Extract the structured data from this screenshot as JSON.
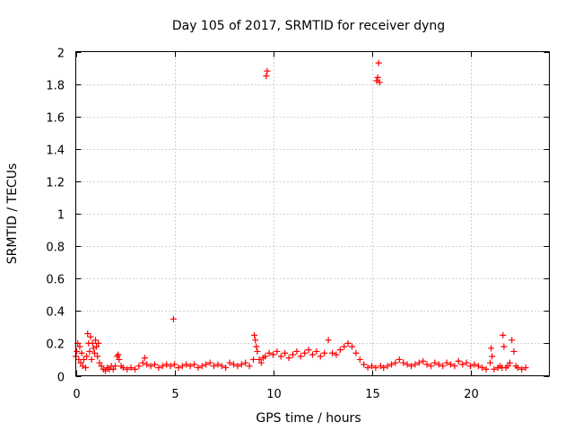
{
  "chart_data": {
    "type": "scatter",
    "title": "Day 105 of 2017, SRMTID for receiver dyng",
    "xlabel": "GPS time / hours",
    "ylabel": "SRMTID / TECUs",
    "xlim": [
      0,
      24
    ],
    "ylim": [
      0,
      2
    ],
    "xticks": [
      0,
      5,
      10,
      15,
      20
    ],
    "yticks": [
      0,
      0.2,
      0.4,
      0.6,
      0.8,
      1,
      1.2,
      1.4,
      1.6,
      1.8,
      2
    ],
    "xtick_labels": [
      "0",
      "5",
      "10",
      "15",
      "20"
    ],
    "ytick_labels": [
      "0",
      "0.2",
      "0.4",
      "0.6",
      "0.8",
      "1",
      "1.2",
      "1.4",
      "1.6",
      "1.8",
      "2"
    ],
    "grid": true,
    "marker": "+",
    "color": "#ff0000",
    "series": [
      {
        "name": "SRMTID",
        "points": [
          [
            0.0,
            0.12
          ],
          [
            0.05,
            0.15
          ],
          [
            0.1,
            0.2
          ],
          [
            0.15,
            0.1
          ],
          [
            0.2,
            0.18
          ],
          [
            0.25,
            0.08
          ],
          [
            0.3,
            0.14
          ],
          [
            0.35,
            0.06
          ],
          [
            0.4,
            0.1
          ],
          [
            0.5,
            0.05
          ],
          [
            0.55,
            0.12
          ],
          [
            0.6,
            0.26
          ],
          [
            0.65,
            0.2
          ],
          [
            0.7,
            0.15
          ],
          [
            0.75,
            0.24
          ],
          [
            0.8,
            0.1
          ],
          [
            0.85,
            0.2
          ],
          [
            0.9,
            0.17
          ],
          [
            0.95,
            0.14
          ],
          [
            1.0,
            0.22
          ],
          [
            1.05,
            0.18
          ],
          [
            1.1,
            0.12
          ],
          [
            1.15,
            0.2
          ],
          [
            1.2,
            0.08
          ],
          [
            1.3,
            0.06
          ],
          [
            1.4,
            0.04
          ],
          [
            1.5,
            0.03
          ],
          [
            1.6,
            0.05
          ],
          [
            1.7,
            0.04
          ],
          [
            1.8,
            0.06
          ],
          [
            1.9,
            0.04
          ],
          [
            2.0,
            0.06
          ],
          [
            2.1,
            0.12
          ],
          [
            2.15,
            0.13
          ],
          [
            2.2,
            0.1
          ],
          [
            2.3,
            0.06
          ],
          [
            2.4,
            0.05
          ],
          [
            2.6,
            0.04
          ],
          [
            2.8,
            0.05
          ],
          [
            3.0,
            0.04
          ],
          [
            3.2,
            0.06
          ],
          [
            3.4,
            0.08
          ],
          [
            3.5,
            0.11
          ],
          [
            3.6,
            0.07
          ],
          [
            3.8,
            0.06
          ],
          [
            4.0,
            0.07
          ],
          [
            4.2,
            0.05
          ],
          [
            4.4,
            0.06
          ],
          [
            4.6,
            0.07
          ],
          [
            4.8,
            0.06
          ],
          [
            4.95,
            0.35
          ],
          [
            5.0,
            0.07
          ],
          [
            5.2,
            0.05
          ],
          [
            5.4,
            0.06
          ],
          [
            5.6,
            0.07
          ],
          [
            5.8,
            0.06
          ],
          [
            6.0,
            0.07
          ],
          [
            6.2,
            0.05
          ],
          [
            6.4,
            0.06
          ],
          [
            6.6,
            0.07
          ],
          [
            6.8,
            0.08
          ],
          [
            7.0,
            0.06
          ],
          [
            7.2,
            0.07
          ],
          [
            7.4,
            0.06
          ],
          [
            7.6,
            0.05
          ],
          [
            7.8,
            0.08
          ],
          [
            8.0,
            0.07
          ],
          [
            8.2,
            0.06
          ],
          [
            8.4,
            0.07
          ],
          [
            8.6,
            0.08
          ],
          [
            8.8,
            0.06
          ],
          [
            9.0,
            0.1
          ],
          [
            9.05,
            0.25
          ],
          [
            9.1,
            0.22
          ],
          [
            9.15,
            0.18
          ],
          [
            9.2,
            0.15
          ],
          [
            9.3,
            0.1
          ],
          [
            9.4,
            0.08
          ],
          [
            9.5,
            0.11
          ],
          [
            9.6,
            0.12
          ],
          [
            9.65,
            1.85
          ],
          [
            9.7,
            1.88
          ],
          [
            9.8,
            0.14
          ],
          [
            10.0,
            0.13
          ],
          [
            10.2,
            0.15
          ],
          [
            10.4,
            0.12
          ],
          [
            10.6,
            0.14
          ],
          [
            10.8,
            0.11
          ],
          [
            11.0,
            0.13
          ],
          [
            11.2,
            0.15
          ],
          [
            11.4,
            0.12
          ],
          [
            11.6,
            0.14
          ],
          [
            11.8,
            0.16
          ],
          [
            12.0,
            0.13
          ],
          [
            12.2,
            0.15
          ],
          [
            12.4,
            0.12
          ],
          [
            12.6,
            0.14
          ],
          [
            12.8,
            0.22
          ],
          [
            13.0,
            0.14
          ],
          [
            13.2,
            0.13
          ],
          [
            13.4,
            0.16
          ],
          [
            13.6,
            0.18
          ],
          [
            13.8,
            0.2
          ],
          [
            14.0,
            0.18
          ],
          [
            14.2,
            0.14
          ],
          [
            14.4,
            0.1
          ],
          [
            14.6,
            0.07
          ],
          [
            14.8,
            0.05
          ],
          [
            15.0,
            0.06
          ],
          [
            15.2,
            0.05
          ],
          [
            15.25,
            1.82
          ],
          [
            15.3,
            1.84
          ],
          [
            15.35,
            1.93
          ],
          [
            15.4,
            1.81
          ],
          [
            15.45,
            0.06
          ],
          [
            15.6,
            0.05
          ],
          [
            15.8,
            0.06
          ],
          [
            16.0,
            0.07
          ],
          [
            16.2,
            0.08
          ],
          [
            16.4,
            0.1
          ],
          [
            16.6,
            0.08
          ],
          [
            16.8,
            0.07
          ],
          [
            17.0,
            0.06
          ],
          [
            17.2,
            0.07
          ],
          [
            17.4,
            0.08
          ],
          [
            17.6,
            0.09
          ],
          [
            17.8,
            0.07
          ],
          [
            18.0,
            0.06
          ],
          [
            18.2,
            0.08
          ],
          [
            18.4,
            0.07
          ],
          [
            18.6,
            0.06
          ],
          [
            18.8,
            0.08
          ],
          [
            19.0,
            0.07
          ],
          [
            19.2,
            0.06
          ],
          [
            19.4,
            0.09
          ],
          [
            19.6,
            0.07
          ],
          [
            19.8,
            0.08
          ],
          [
            20.0,
            0.06
          ],
          [
            20.2,
            0.07
          ],
          [
            20.4,
            0.06
          ],
          [
            20.6,
            0.05
          ],
          [
            20.8,
            0.04
          ],
          [
            21.0,
            0.08
          ],
          [
            21.05,
            0.17
          ],
          [
            21.1,
            0.12
          ],
          [
            21.2,
            0.04
          ],
          [
            21.4,
            0.05
          ],
          [
            21.5,
            0.06
          ],
          [
            21.6,
            0.05
          ],
          [
            21.65,
            0.25
          ],
          [
            21.7,
            0.18
          ],
          [
            21.8,
            0.05
          ],
          [
            21.9,
            0.06
          ],
          [
            22.0,
            0.08
          ],
          [
            22.1,
            0.22
          ],
          [
            22.2,
            0.15
          ],
          [
            22.3,
            0.06
          ],
          [
            22.4,
            0.05
          ],
          [
            22.6,
            0.04
          ],
          [
            22.8,
            0.05
          ]
        ]
      }
    ]
  }
}
